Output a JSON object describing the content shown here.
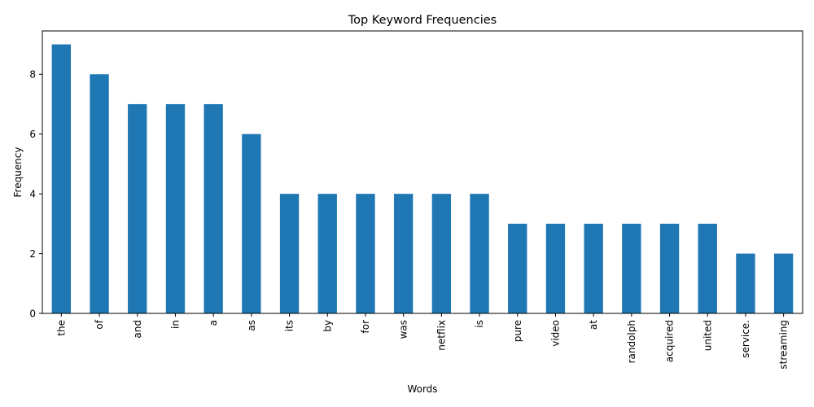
{
  "chart_data": {
    "type": "bar",
    "title": "Top Keyword Frequencies",
    "xlabel": "Words",
    "ylabel": "Frequency",
    "categories": [
      "the",
      "of",
      "and",
      "in",
      "a",
      "as",
      "its",
      "by",
      "for",
      "was",
      "netflix",
      "is",
      "pure",
      "video",
      "at",
      "randolph",
      "acquired",
      "united",
      "service.",
      "streaming"
    ],
    "values": [
      9,
      8,
      7,
      7,
      7,
      6,
      4,
      4,
      4,
      4,
      4,
      4,
      3,
      3,
      3,
      3,
      3,
      3,
      2,
      2
    ],
    "yticks": [
      0,
      2,
      4,
      6,
      8
    ],
    "ylim": [
      0,
      9.45
    ],
    "grid": false,
    "legend": "none",
    "bar_color": "#1f77b4"
  }
}
